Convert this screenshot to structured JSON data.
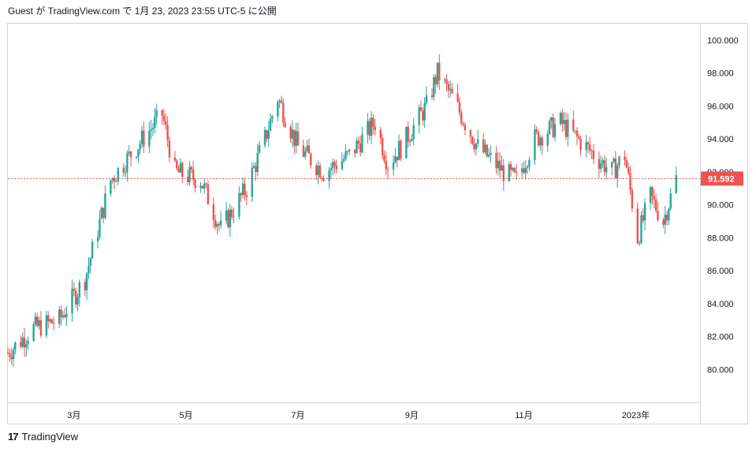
{
  "header": {
    "text": "Guest が TradingView.com で 1月 23, 2023 23:55 UTC-5 に公開"
  },
  "footer": {
    "logo": "17",
    "brand": "TradingView"
  },
  "colors": {
    "up": "#26a69a",
    "down": "#ef5350",
    "border": "#d1d4dc",
    "price_line": "#ef5350"
  },
  "chart_data": {
    "type": "candlestick",
    "ylim": [
      78,
      101
    ],
    "y_ticks": [
      "80.000",
      "82.000",
      "84.000",
      "86.000",
      "88.000",
      "90.000",
      "92.000",
      "94.000",
      "96.000",
      "98.000",
      "100.000"
    ],
    "x_ticks": [
      {
        "label": "3月",
        "x": "2022-03-01"
      },
      {
        "label": "5月",
        "x": "2022-05-01"
      },
      {
        "label": "7月",
        "x": "2022-07-01"
      },
      {
        "label": "9月",
        "x": "2022-09-01"
      },
      {
        "label": "11月",
        "x": "2022-11-01"
      },
      {
        "label": "2023年",
        "x": "2023-01-01"
      }
    ],
    "x_range": [
      "2022-01-24",
      "2023-02-05"
    ],
    "last_price": {
      "label": "91.592",
      "value": 91.592
    },
    "closes": [
      {
        "date": "2022-01-24",
        "close": 81.0
      },
      {
        "date": "2022-02-07",
        "close": 82.5
      },
      {
        "date": "2022-02-21",
        "close": 83.0
      },
      {
        "date": "2022-03-07",
        "close": 85.5
      },
      {
        "date": "2022-03-21",
        "close": 91.5
      },
      {
        "date": "2022-04-04",
        "close": 93.5
      },
      {
        "date": "2022-04-18",
        "close": 95.5
      },
      {
        "date": "2022-04-25",
        "close": 92.0
      },
      {
        "date": "2022-05-09",
        "close": 91.5
      },
      {
        "date": "2022-05-20",
        "close": 88.5
      },
      {
        "date": "2022-06-03",
        "close": 91.0
      },
      {
        "date": "2022-06-13",
        "close": 94.0
      },
      {
        "date": "2022-06-20",
        "close": 96.5
      },
      {
        "date": "2022-07-01",
        "close": 93.5
      },
      {
        "date": "2022-07-15",
        "close": 92.0
      },
      {
        "date": "2022-07-29",
        "close": 93.0
      },
      {
        "date": "2022-08-12",
        "close": 95.0
      },
      {
        "date": "2022-08-19",
        "close": 92.5
      },
      {
        "date": "2022-08-26",
        "close": 93.5
      },
      {
        "date": "2022-09-09",
        "close": 96.0
      },
      {
        "date": "2022-09-15",
        "close": 98.0
      },
      {
        "date": "2022-09-23",
        "close": 96.5
      },
      {
        "date": "2022-10-07",
        "close": 93.5
      },
      {
        "date": "2022-10-21",
        "close": 92.0
      },
      {
        "date": "2022-10-28",
        "close": 91.5
      },
      {
        "date": "2022-11-07",
        "close": 94.0
      },
      {
        "date": "2022-11-21",
        "close": 95.0
      },
      {
        "date": "2022-12-05",
        "close": 93.5
      },
      {
        "date": "2022-12-19",
        "close": 92.0
      },
      {
        "date": "2022-12-26",
        "close": 93.0
      },
      {
        "date": "2023-01-02",
        "close": 88.0
      },
      {
        "date": "2023-01-09",
        "close": 90.5
      },
      {
        "date": "2023-01-16",
        "close": 89.0
      },
      {
        "date": "2023-01-23",
        "close": 91.592
      }
    ]
  }
}
